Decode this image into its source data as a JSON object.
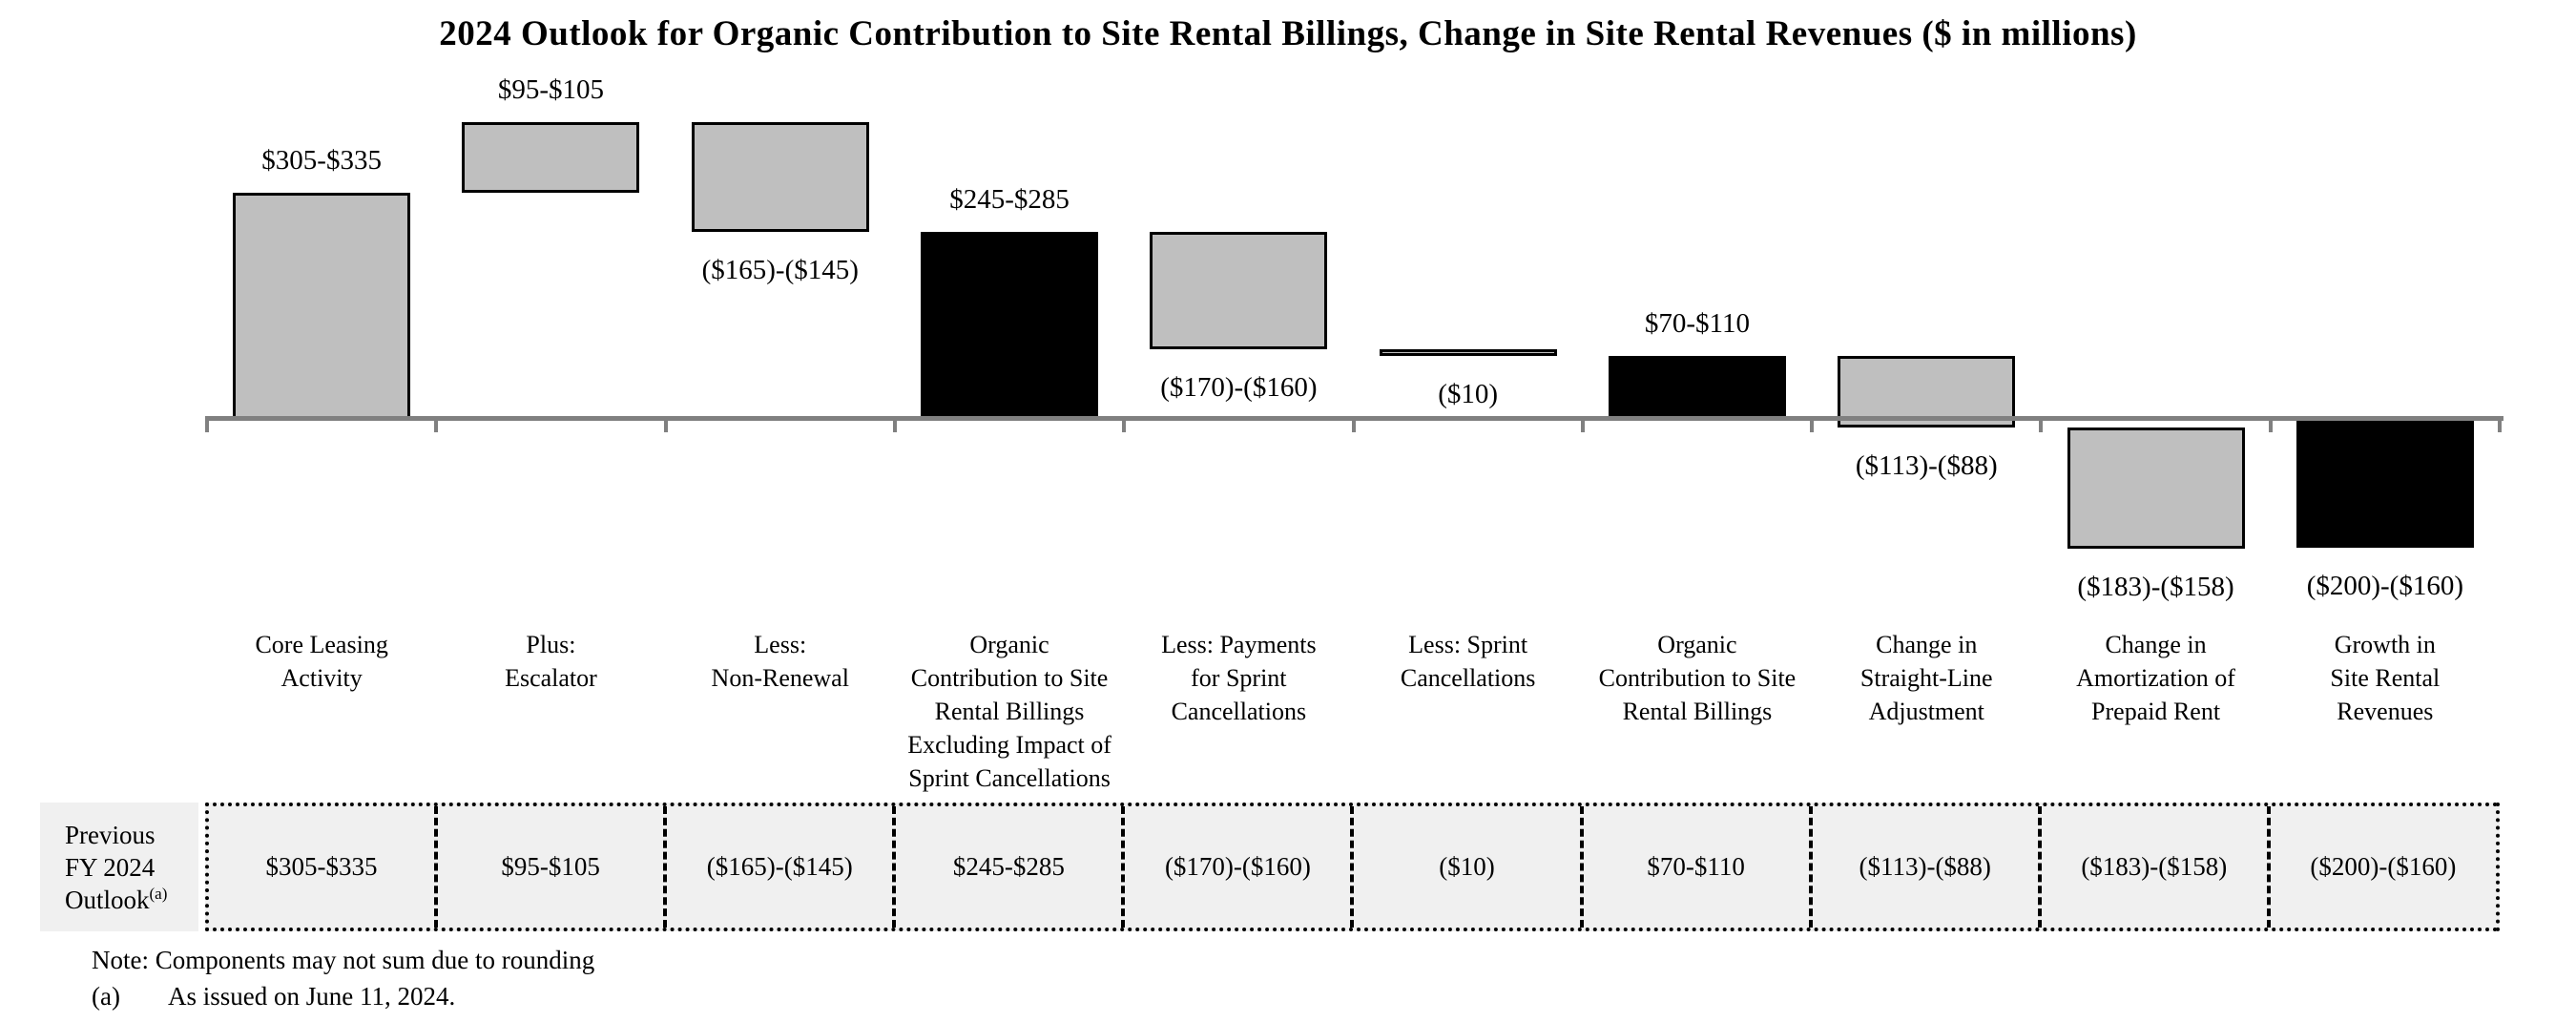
{
  "title": "2024 Outlook for Organic Contribution to Site Rental Billings, Change in Site Rental Revenues ($ in millions)",
  "colors": {
    "bar_gray": "#bfbfbf",
    "bar_black": "#000000",
    "bar_border": "#000000",
    "axis_line": "#808080",
    "table_background": "#f0f0f0",
    "text": "#000000"
  },
  "chart_data": {
    "type": "bar",
    "subtype": "waterfall",
    "title": "2024 Outlook for Organic Contribution to Site Rental Billings, Change in Site Rental Revenues ($ in millions)",
    "unit": "$ in millions",
    "ylim": [
      -200,
      440
    ],
    "baseline": 0,
    "gridlines": false,
    "legend": "none",
    "categories": [
      "Core Leasing Activity",
      "Plus: Escalator",
      "Less: Non-Renewal",
      "Organic Contribution to Site Rental Billings Excluding Impact of Sprint Cancellations",
      "Less: Payments for Sprint Cancellations",
      "Less: Sprint Cancellations",
      "Organic Contribution to Site Rental Billings",
      "Change in Straight-Line Adjustment",
      "Change in Amortization of Prepaid Rent",
      "Growth in Site Rental Revenues"
    ],
    "items": [
      {
        "category_lines": [
          "Core Leasing",
          "Activity"
        ],
        "value_label": "$305-$335",
        "range": [
          305,
          335
        ],
        "from": 0,
        "to": 320,
        "color": "gray",
        "label_position": "above"
      },
      {
        "category_lines": [
          "Plus:",
          "Escalator"
        ],
        "value_label": "$95-$105",
        "range": [
          95,
          105
        ],
        "from": 320,
        "to": 420,
        "color": "gray",
        "label_position": "above"
      },
      {
        "category_lines": [
          "Less:",
          "Non-Renewal"
        ],
        "value_label": "($165)-($145)",
        "range": [
          -165,
          -145
        ],
        "from": 420,
        "to": 265,
        "color": "gray",
        "label_position": "below"
      },
      {
        "category_lines": [
          "Organic",
          "Contribution to Site",
          "Rental Billings",
          "Excluding Impact of",
          "Sprint Cancellations"
        ],
        "value_label": "$245-$285",
        "range": [
          245,
          285
        ],
        "from": 0,
        "to": 265,
        "color": "black",
        "label_position": "above"
      },
      {
        "category_lines": [
          "Less: Payments",
          "for Sprint",
          "Cancellations"
        ],
        "value_label": "($170)-($160)",
        "range": [
          -170,
          -160
        ],
        "from": 265,
        "to": 100,
        "color": "gray",
        "label_position": "below"
      },
      {
        "category_lines": [
          "Less: Sprint",
          "Cancellations"
        ],
        "value_label": "($10)",
        "range": [
          -10,
          -10
        ],
        "from": 100,
        "to": 90,
        "color": "gray",
        "label_position": "below"
      },
      {
        "category_lines": [
          "Organic",
          "Contribution to Site",
          "Rental Billings"
        ],
        "value_label": "$70-$110",
        "range": [
          70,
          110
        ],
        "from": 0,
        "to": 90,
        "color": "black",
        "label_position": "above"
      },
      {
        "category_lines": [
          "Change in",
          "Straight-Line",
          "Adjustment"
        ],
        "value_label": "($113)-($88)",
        "range": [
          -113,
          -88
        ],
        "from": 90,
        "to": -10.5,
        "color": "gray",
        "label_position": "below"
      },
      {
        "category_lines": [
          "Change in",
          "Amortization of",
          "Prepaid Rent"
        ],
        "value_label": "($183)-($158)",
        "range": [
          -183,
          -158
        ],
        "from": -10.5,
        "to": -181,
        "color": "gray",
        "label_position": "below"
      },
      {
        "category_lines": [
          "Growth in",
          "Site Rental",
          "Revenues"
        ],
        "value_label": "($200)-($160)",
        "range": [
          -200,
          -160
        ],
        "from": 0,
        "to": -180,
        "color": "black",
        "label_position": "below"
      }
    ]
  },
  "table": {
    "header_lines": [
      "Previous",
      "FY 2024",
      "Outlook"
    ],
    "header_superscript": "(a)",
    "values": [
      "$305-$335",
      "$95-$105",
      "($165)-($145)",
      "$245-$285",
      "($170)-($160)",
      "($10)",
      "$70-$110",
      "($113)-($88)",
      "($183)-($158)",
      "($200)-($160)"
    ]
  },
  "notes": {
    "rounding": "Note: Components may not sum due to rounding",
    "a_label": "(a)",
    "a_text": "As issued on June 11, 2024."
  }
}
